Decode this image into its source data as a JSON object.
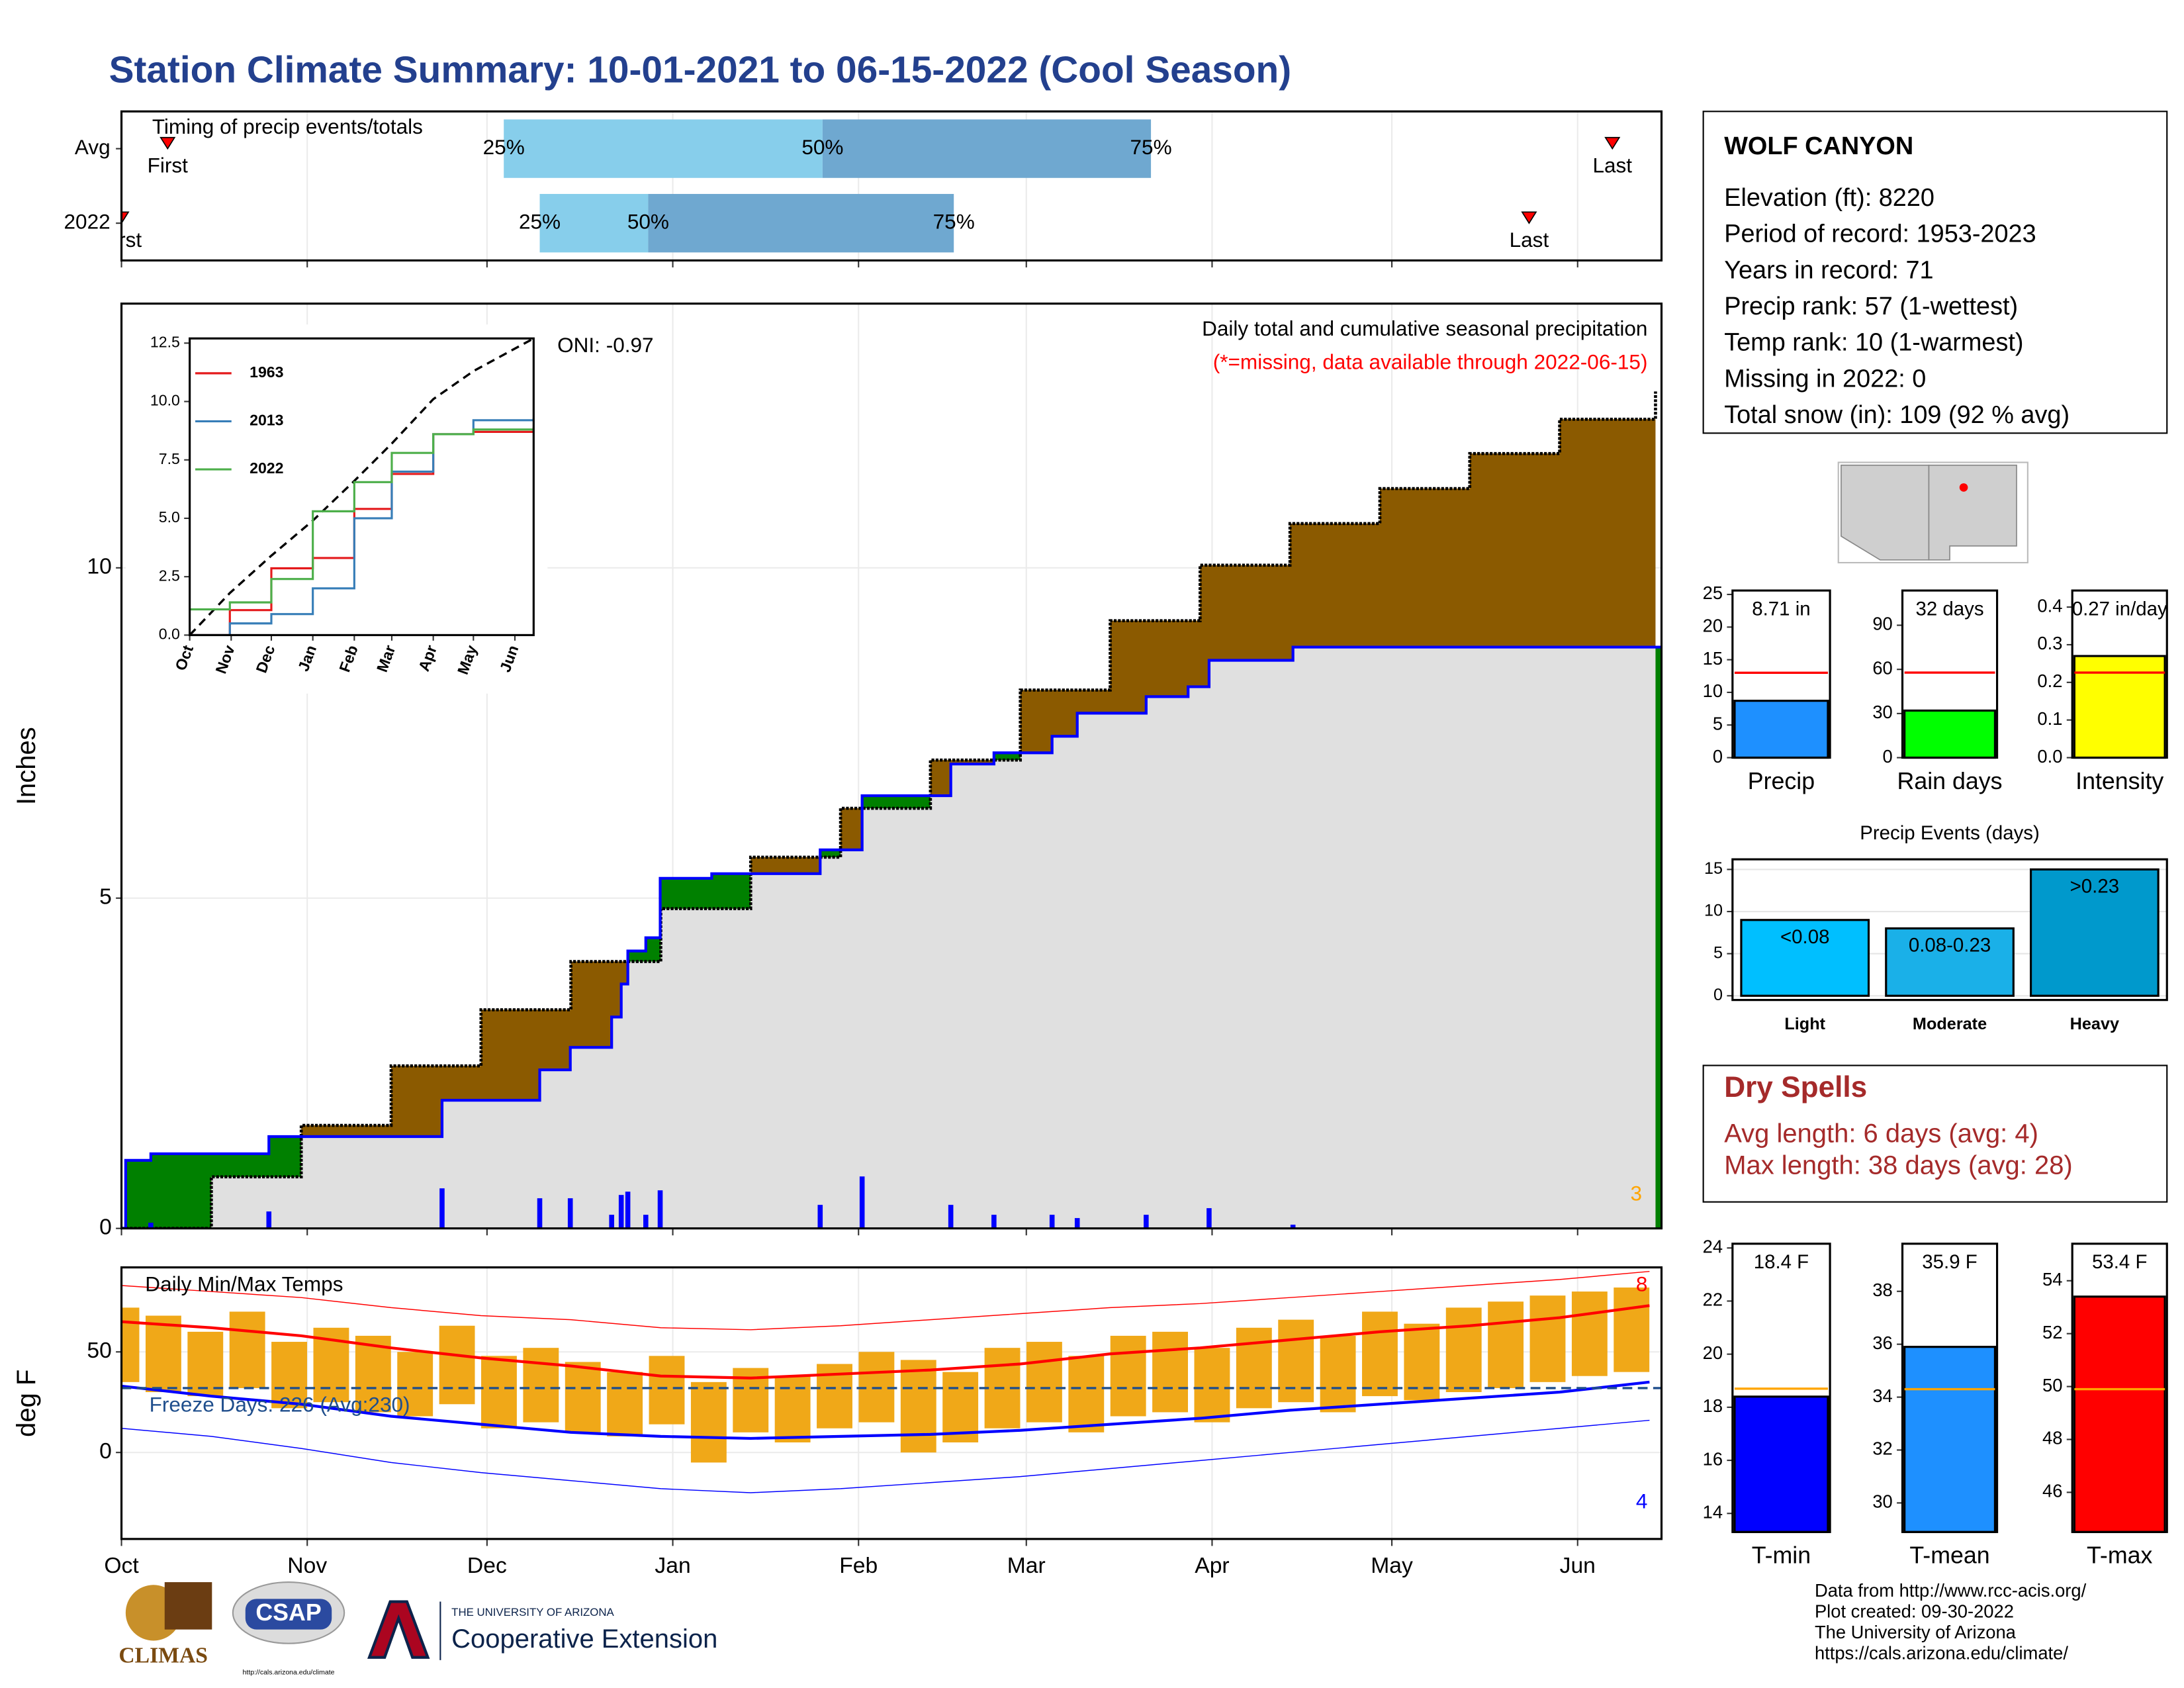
{
  "title": "Station Climate Summary: 10-01-2021 to 06-15-2022 (Cool Season)",
  "chart_data": [
    {
      "type": "timing",
      "title": "Timing of precip events/totals",
      "categories": [
        "Avg",
        "2022"
      ],
      "point_labels": [
        "First",
        "25%",
        "50%",
        "75%",
        "Last"
      ],
      "values": [
        [
          7.7,
          63.8,
          117,
          171.8,
          248.8
        ],
        [
          0,
          69.8,
          87.9,
          138.9,
          234.9
        ]
      ],
      "colors": [
        "#87ceeb",
        "#6fa8d0"
      ],
      "marker_color": "#ff0000",
      "xlim": [
        0,
        257
      ],
      "xticks": [
        0,
        31,
        61,
        92,
        123,
        151,
        182,
        212,
        243
      ],
      "grid": true
    },
    {
      "type": "area",
      "title": "Daily total and cumulative seasonal precipitation",
      "subtitle": "(*=missing, data available through 2022-06-15)",
      "annotation": "ONI: -0.97",
      "ylabel": "Inches",
      "count": 3,
      "xlim": [
        0,
        257
      ],
      "xticks": [
        0,
        31,
        61,
        92,
        123,
        151,
        182,
        212,
        243
      ],
      "ylim": [
        0,
        14
      ],
      "yticks": [
        0,
        5,
        10
      ],
      "grid": true,
      "average": {
        "x": [
          0,
          15,
          30,
          45,
          60,
          75,
          90,
          105,
          120,
          135,
          150,
          165,
          180,
          195,
          210,
          225,
          240,
          256
        ],
        "values": [
          0,
          0.78,
          1.56,
          2.46,
          3.31,
          4.04,
          4.84,
          5.62,
          6.36,
          7.09,
          8.15,
          9.2,
          10.04,
          10.67,
          11.2,
          11.73,
          12.25,
          12.67
        ],
        "color": "#000000"
      },
      "current": {
        "x": [
          0,
          0.7,
          4.9,
          24.6,
          53.5,
          69.8,
          74.9,
          81.8,
          83.4,
          84.5,
          87.5,
          89.9,
          98.5,
          116.6,
          123.6,
          138.4,
          145.6,
          155.3,
          159.5,
          171,
          178,
          181.5,
          195.5,
          257
        ],
        "values": [
          0,
          1.03,
          1.13,
          1.39,
          1.94,
          2.4,
          2.74,
          3.2,
          3.7,
          4.2,
          4.4,
          5.3,
          5.37,
          5.73,
          6.55,
          7.03,
          7.2,
          7.45,
          7.8,
          8.05,
          8.2,
          8.6,
          8.8,
          8.8
        ],
        "color": "#0000ff"
      },
      "daily": {
        "x": [
          4.9,
          24.6,
          53.5,
          69.8,
          74.9,
          81.8,
          83.4,
          84.5,
          87.5,
          89.9,
          116.6,
          123.6,
          138.4,
          145.6,
          155.3,
          159.5,
          171,
          181.5,
          195.5
        ],
        "values": [
          0.08,
          0.25,
          0.6,
          0.45,
          0.45,
          0.2,
          0.5,
          0.55,
          0.2,
          0.57,
          0.35,
          0.78,
          0.35,
          0.2,
          0.2,
          0.15,
          0.2,
          0.3,
          0.05
        ],
        "color": "#0000ff"
      },
      "above_color": "#8b5a00",
      "below_color": "#008000",
      "base_color": "#e0e0e0"
    },
    {
      "type": "line",
      "x": [
        0,
        30,
        61,
        92,
        123,
        151,
        182,
        212,
        257
      ],
      "series": [
        {
          "name": "1963",
          "color": "#e41a1c",
          "values": [
            0,
            1.07,
            2.86,
            3.3,
            5.4,
            6.9,
            8.6,
            8.7,
            8.9
          ]
        },
        {
          "name": "2013",
          "color": "#377eb8",
          "values": [
            0,
            0.5,
            0.9,
            2.0,
            5.0,
            7.0,
            8.6,
            9.2,
            9.3
          ]
        },
        {
          "name": "2022",
          "color": "#4daf4a",
          "values": [
            1.1,
            1.4,
            2.4,
            5.3,
            6.55,
            7.8,
            8.6,
            8.8,
            8.8
          ]
        }
      ],
      "average": {
        "values": [
          0,
          1.8,
          3.4,
          4.9,
          6.6,
          8.2,
          10.1,
          11.3,
          12.7
        ],
        "color": "#000000"
      },
      "xlim": [
        0,
        257
      ],
      "xticks": [
        {
          "value": 0,
          "label": "Oct"
        },
        {
          "value": 31,
          "label": "Nov"
        },
        {
          "value": 61,
          "label": "Dec"
        },
        {
          "value": 92,
          "label": "Jan"
        },
        {
          "value": 123,
          "label": "Feb"
        },
        {
          "value": 151,
          "label": "Mar"
        },
        {
          "value": 182,
          "label": "Apr"
        },
        {
          "value": 212,
          "label": "May"
        },
        {
          "value": 243,
          "label": "Jun"
        }
      ],
      "ylim": [
        0,
        12.7
      ],
      "yticks": [
        {
          "value": 0,
          "label": "0.0"
        },
        {
          "value": 2.5,
          "label": "2.5"
        },
        {
          "value": 5,
          "label": "5.0"
        },
        {
          "value": 7.5,
          "label": "7.5"
        },
        {
          "value": 10,
          "label": "10.0"
        },
        {
          "value": 12.5,
          "label": "12.5"
        }
      ]
    },
    {
      "type": "bar",
      "categories": [
        "Precip"
      ],
      "values": [
        8.71
      ],
      "value_labels": [
        "8.71 in"
      ],
      "color": "#1e90ff",
      "average": 13.0,
      "average_color": "#ff0000",
      "ylim": [
        0,
        25.6
      ],
      "yticks": [
        0,
        5,
        10,
        15,
        20,
        25
      ]
    },
    {
      "type": "bar",
      "categories": [
        "Rain days"
      ],
      "values": [
        32
      ],
      "value_labels": [
        "32 days"
      ],
      "color": "#00ff00",
      "average": 57.8,
      "average_color": "#ff0000",
      "ylim": [
        0,
        113.6
      ],
      "yticks": [
        0,
        30,
        60,
        90
      ]
    },
    {
      "type": "bar",
      "categories": [
        "Intensity"
      ],
      "values": [
        0.27
      ],
      "value_labels": [
        "0.27 in/day"
      ],
      "color": "#ffff00",
      "average": 0.226,
      "average_color": "#ff0000",
      "ylim": [
        0,
        0.444
      ],
      "yticks": [
        {
          "value": 0,
          "label": "0.0"
        },
        0.1,
        0.2,
        0.3,
        0.4
      ]
    },
    {
      "type": "bar",
      "title": "Precip Events (days)",
      "categories": [
        "Light",
        "Moderate",
        "Heavy"
      ],
      "values": [
        9,
        8,
        15
      ],
      "bin_labels": [
        "<0.08",
        "0.08-0.23",
        ">0.23"
      ],
      "colors": [
        "#00bfff",
        "#1ab0e8",
        "#0099cc"
      ],
      "ylim": [
        -0.5,
        16.2
      ],
      "yticks": [
        0,
        5,
        10,
        15
      ],
      "grid": true
    },
    {
      "type": "band",
      "title": "Daily Min/Max Temps",
      "ylabel": "deg F",
      "annotation": "Freeze Days: 226 (Avg:230)",
      "record_high_days": 8,
      "record_low_days": 4,
      "x": [
        0,
        7,
        14,
        21,
        28,
        35,
        42,
        49,
        56,
        63,
        70,
        77,
        84,
        91,
        98,
        105,
        112,
        119,
        126,
        133,
        140,
        147,
        154,
        161,
        168,
        175,
        182,
        189,
        196,
        203,
        210,
        217,
        224,
        231,
        238,
        245,
        252
      ],
      "daily_max": [
        72,
        68,
        60,
        70,
        55,
        62,
        58,
        50,
        63,
        48,
        52,
        45,
        40,
        48,
        35,
        42,
        38,
        44,
        50,
        46,
        40,
        52,
        55,
        48,
        58,
        60,
        52,
        62,
        66,
        58,
        70,
        64,
        72,
        75,
        78,
        80,
        82
      ],
      "daily_min": [
        35,
        30,
        28,
        32,
        22,
        25,
        20,
        18,
        24,
        12,
        15,
        10,
        8,
        14,
        -5,
        10,
        5,
        12,
        15,
        0,
        5,
        12,
        15,
        10,
        18,
        20,
        15,
        22,
        25,
        20,
        28,
        26,
        30,
        32,
        35,
        38,
        40
      ],
      "bar_color": "#f0a818",
      "normals_x": [
        0,
        15,
        30,
        45,
        60,
        75,
        90,
        105,
        120,
        135,
        150,
        165,
        180,
        195,
        210,
        225,
        240,
        255
      ],
      "normal_max": [
        65,
        62,
        58,
        52,
        47,
        43,
        38,
        37,
        39,
        41,
        44,
        49,
        52,
        56,
        60,
        63,
        67,
        73
      ],
      "normal_min": [
        33,
        28,
        24,
        18,
        14,
        10,
        8,
        7,
        8,
        9,
        11,
        14,
        17,
        21,
        24,
        27,
        30,
        35
      ],
      "record_max": [
        83,
        80,
        77,
        72,
        68,
        66,
        62,
        61,
        63,
        66,
        69,
        72,
        74,
        77,
        80,
        83,
        86,
        90
      ],
      "record_min": [
        12,
        8,
        2,
        -5,
        -10,
        -14,
        -18,
        -20,
        -18,
        -15,
        -12,
        -8,
        -4,
        0,
        4,
        8,
        12,
        16
      ],
      "max_color": "#ff0000",
      "min_color": "#0000ff",
      "freeze_line": 32,
      "freeze_color": "#1f4e8c",
      "xlim": [
        0,
        257
      ],
      "xticks": [
        {
          "value": 0,
          "label": "Oct"
        },
        {
          "value": 31,
          "label": "Nov"
        },
        {
          "value": 61,
          "label": "Dec"
        },
        {
          "value": 92,
          "label": "Jan"
        },
        {
          "value": 123,
          "label": "Feb"
        },
        {
          "value": 151,
          "label": "Mar"
        },
        {
          "value": 182,
          "label": "Apr"
        },
        {
          "value": 212,
          "label": "May"
        },
        {
          "value": 243,
          "label": "Jun"
        }
      ],
      "ylim": [
        -43,
        92
      ],
      "yticks": [
        0,
        50
      ],
      "grid": true
    },
    {
      "type": "bar",
      "categories": [
        "T-min"
      ],
      "values": [
        18.4
      ],
      "value_labels": [
        "18.4 F"
      ],
      "color": "#0000ff",
      "average": 18.7,
      "average_color": "#ffa500",
      "ylim": [
        13.3,
        24.16
      ],
      "yticks": [
        14,
        16,
        18,
        20,
        22,
        24
      ]
    },
    {
      "type": "bar",
      "categories": [
        "T-mean"
      ],
      "values": [
        35.9
      ],
      "value_labels": [
        "35.9 F"
      ],
      "color": "#1e90ff",
      "average": 34.3,
      "average_color": "#ffa500",
      "ylim": [
        28.9,
        39.8
      ],
      "yticks": [
        30,
        32,
        34,
        36,
        38
      ]
    },
    {
      "type": "bar",
      "categories": [
        "T-max"
      ],
      "values": [
        53.4
      ],
      "value_labels": [
        "53.4 F"
      ],
      "color": "#ff0000",
      "average": 49.9,
      "average_color": "#ffa500",
      "ylim": [
        44.5,
        55.4
      ],
      "yticks": [
        46,
        48,
        50,
        52,
        54
      ]
    }
  ],
  "station": {
    "name": "WOLF CANYON",
    "lines": [
      "Elevation (ft): 8220",
      "Period of record: 1953-2023",
      "Years in record: 71",
      "Precip rank: 57 (1-wettest)",
      "Temp rank: 10 (1-warmest)",
      "Missing in 2022: 0",
      "Total snow (in): 109 (92 % avg)"
    ]
  },
  "dry_spells": {
    "title": "Dry Spells",
    "lines": [
      "Avg length: 6 days (avg: 4)",
      "Max length: 38 days (avg: 28)"
    ]
  },
  "footer": {
    "logos": [
      "CLIMAS",
      "CSAP",
      "http://cals.arizona.edu/climate",
      "THE UNIVERSITY OF ARIZONA",
      "Cooperative Extension"
    ],
    "credits": [
      "Data from http://www.rcc-acis.org/",
      "Plot created: 09-30-2022",
      "The University of Arizona",
      "https://cals.arizona.edu/climate/"
    ]
  }
}
